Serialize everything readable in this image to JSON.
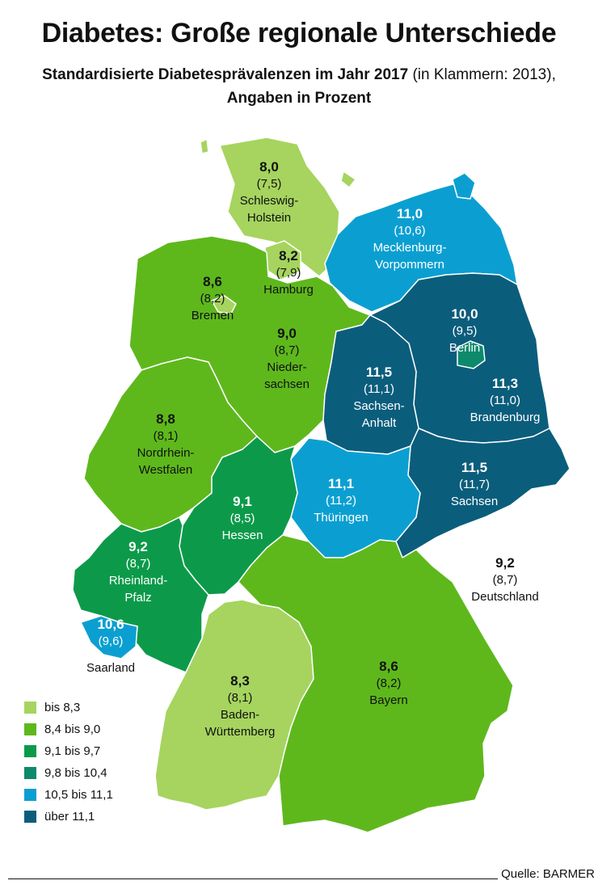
{
  "title": "Diabetes: Große regionale Unterschiede",
  "subtitle": {
    "main": "Standardisierte Diabetesprävalenzen im Jahr 2017",
    "note": "(in Klammern: 2013),",
    "line2": "Angaben in Prozent"
  },
  "colors": {
    "c1": "#a6d45f",
    "c2": "#5eb81c",
    "c3": "#0c9a4a",
    "c4": "#0d8a6c",
    "c5": "#0b9fd1",
    "c6": "#0b5d7c"
  },
  "legend": [
    {
      "label": "bis 8,3",
      "color": "#a6d45f"
    },
    {
      "label": "8,4 bis 9,0",
      "color": "#5eb81c"
    },
    {
      "label": "9,1 bis 9,7",
      "color": "#0c9a4a"
    },
    {
      "label": "9,8 bis 10,4",
      "color": "#0d8a6c"
    },
    {
      "label": "10,5 bis 11,1",
      "color": "#0b9fd1"
    },
    {
      "label": "über 11,1",
      "color": "#0b5d7c"
    }
  ],
  "regions": {
    "sh": {
      "value": "8,0",
      "prev": "(7,5)",
      "name1": "Schleswig-",
      "name2": "Holstein"
    },
    "hh": {
      "value": "8,2",
      "prev": "(7,9)",
      "name1": "Hamburg"
    },
    "mv": {
      "value": "11,0",
      "prev": "(10,6)",
      "name1": "Mecklenburg-",
      "name2": "Vorpommern"
    },
    "hb": {
      "value": "8,6",
      "prev": "(8,2)",
      "name1": "Bremen"
    },
    "ni": {
      "value": "9,0",
      "prev": "(8,7)",
      "name1": "Nieder-",
      "name2": "sachsen"
    },
    "be": {
      "value": "10,0",
      "prev": "(9,5)",
      "name1": "Berlin"
    },
    "st": {
      "value": "11,5",
      "prev": "(11,1)",
      "name1": "Sachsen-",
      "name2": "Anhalt"
    },
    "bb": {
      "value": "11,3",
      "prev": "(11,0)",
      "name1": "Brandenburg"
    },
    "nw": {
      "value": "8,8",
      "prev": "(8,1)",
      "name1": "Nordrhein-",
      "name2": "Westfalen"
    },
    "he": {
      "value": "9,1",
      "prev": "(8,5)",
      "name1": "Hessen"
    },
    "th": {
      "value": "11,1",
      "prev": "(11,2)",
      "name1": "Thüringen"
    },
    "sn": {
      "value": "11,5",
      "prev": "(11,7)",
      "name1": "Sachsen"
    },
    "rp": {
      "value": "9,2",
      "prev": "(8,7)",
      "name1": "Rheinland-",
      "name2": "Pfalz"
    },
    "sl": {
      "value": "10,6",
      "prev": "(9,6)",
      "name1": "Saarland"
    },
    "bw": {
      "value": "8,3",
      "prev": "(8,1)",
      "name1": "Baden-",
      "name2": "Württemberg"
    },
    "by": {
      "value": "8,6",
      "prev": "(8,2)",
      "name1": "Bayern"
    },
    "de": {
      "value": "9,2",
      "prev": "(8,7)",
      "name1": "Deutschland"
    }
  },
  "source": "Quelle: BARMER"
}
